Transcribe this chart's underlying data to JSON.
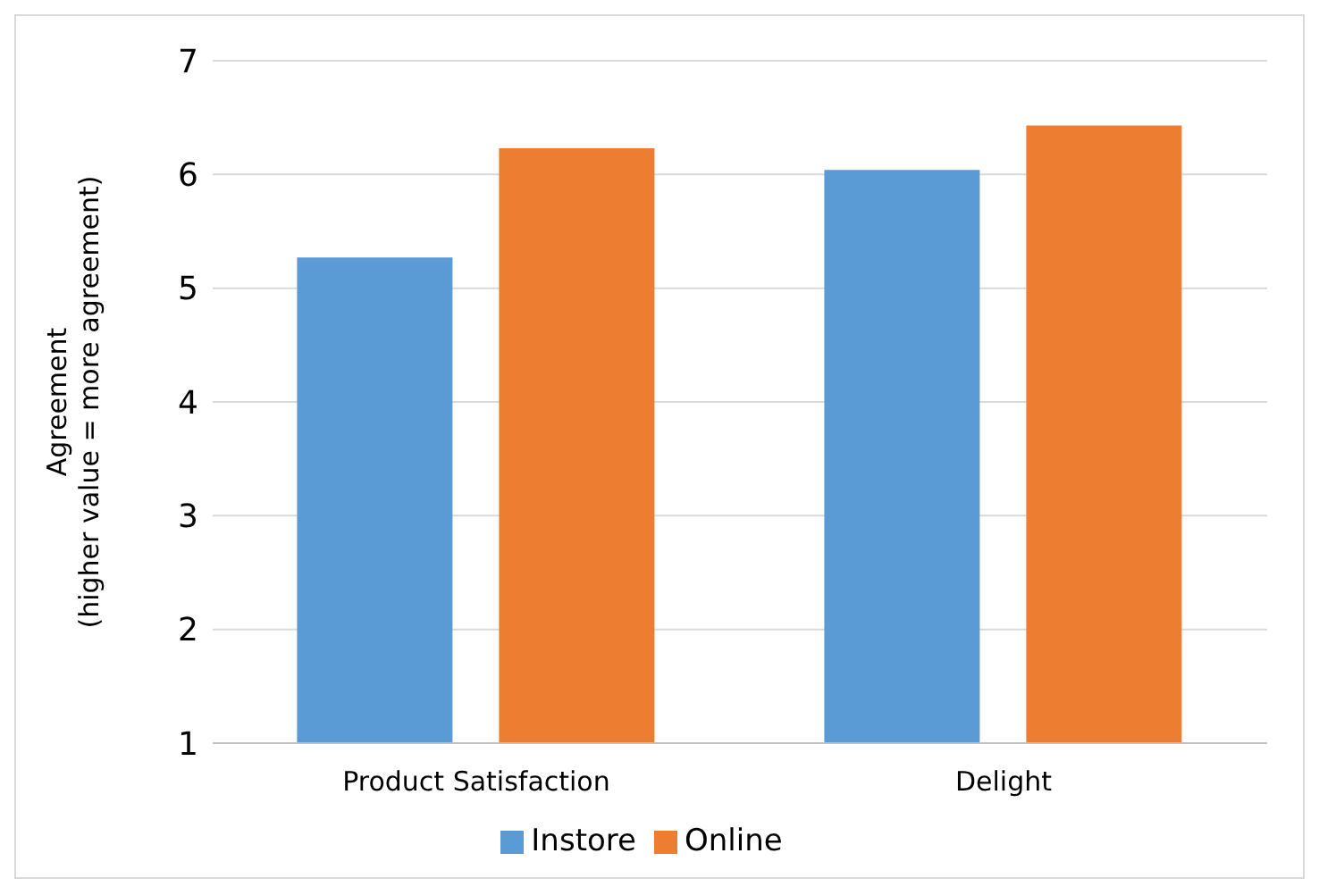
{
  "chart_data": {
    "type": "bar",
    "categories": [
      "Product Satisfaction",
      "Delight"
    ],
    "series": [
      {
        "name": "Instore",
        "color": "#5b9bd5",
        "values": [
          5.27,
          6.04
        ]
      },
      {
        "name": "Online",
        "color": "#ed7d31",
        "values": [
          6.23,
          6.43
        ]
      }
    ],
    "ylabel": "Agreement\n(higher value = more agreement)",
    "ylim": [
      1,
      7
    ],
    "yticks": [
      1,
      2,
      3,
      4,
      5,
      6,
      7
    ],
    "grid": "y",
    "legend": "bottom"
  }
}
